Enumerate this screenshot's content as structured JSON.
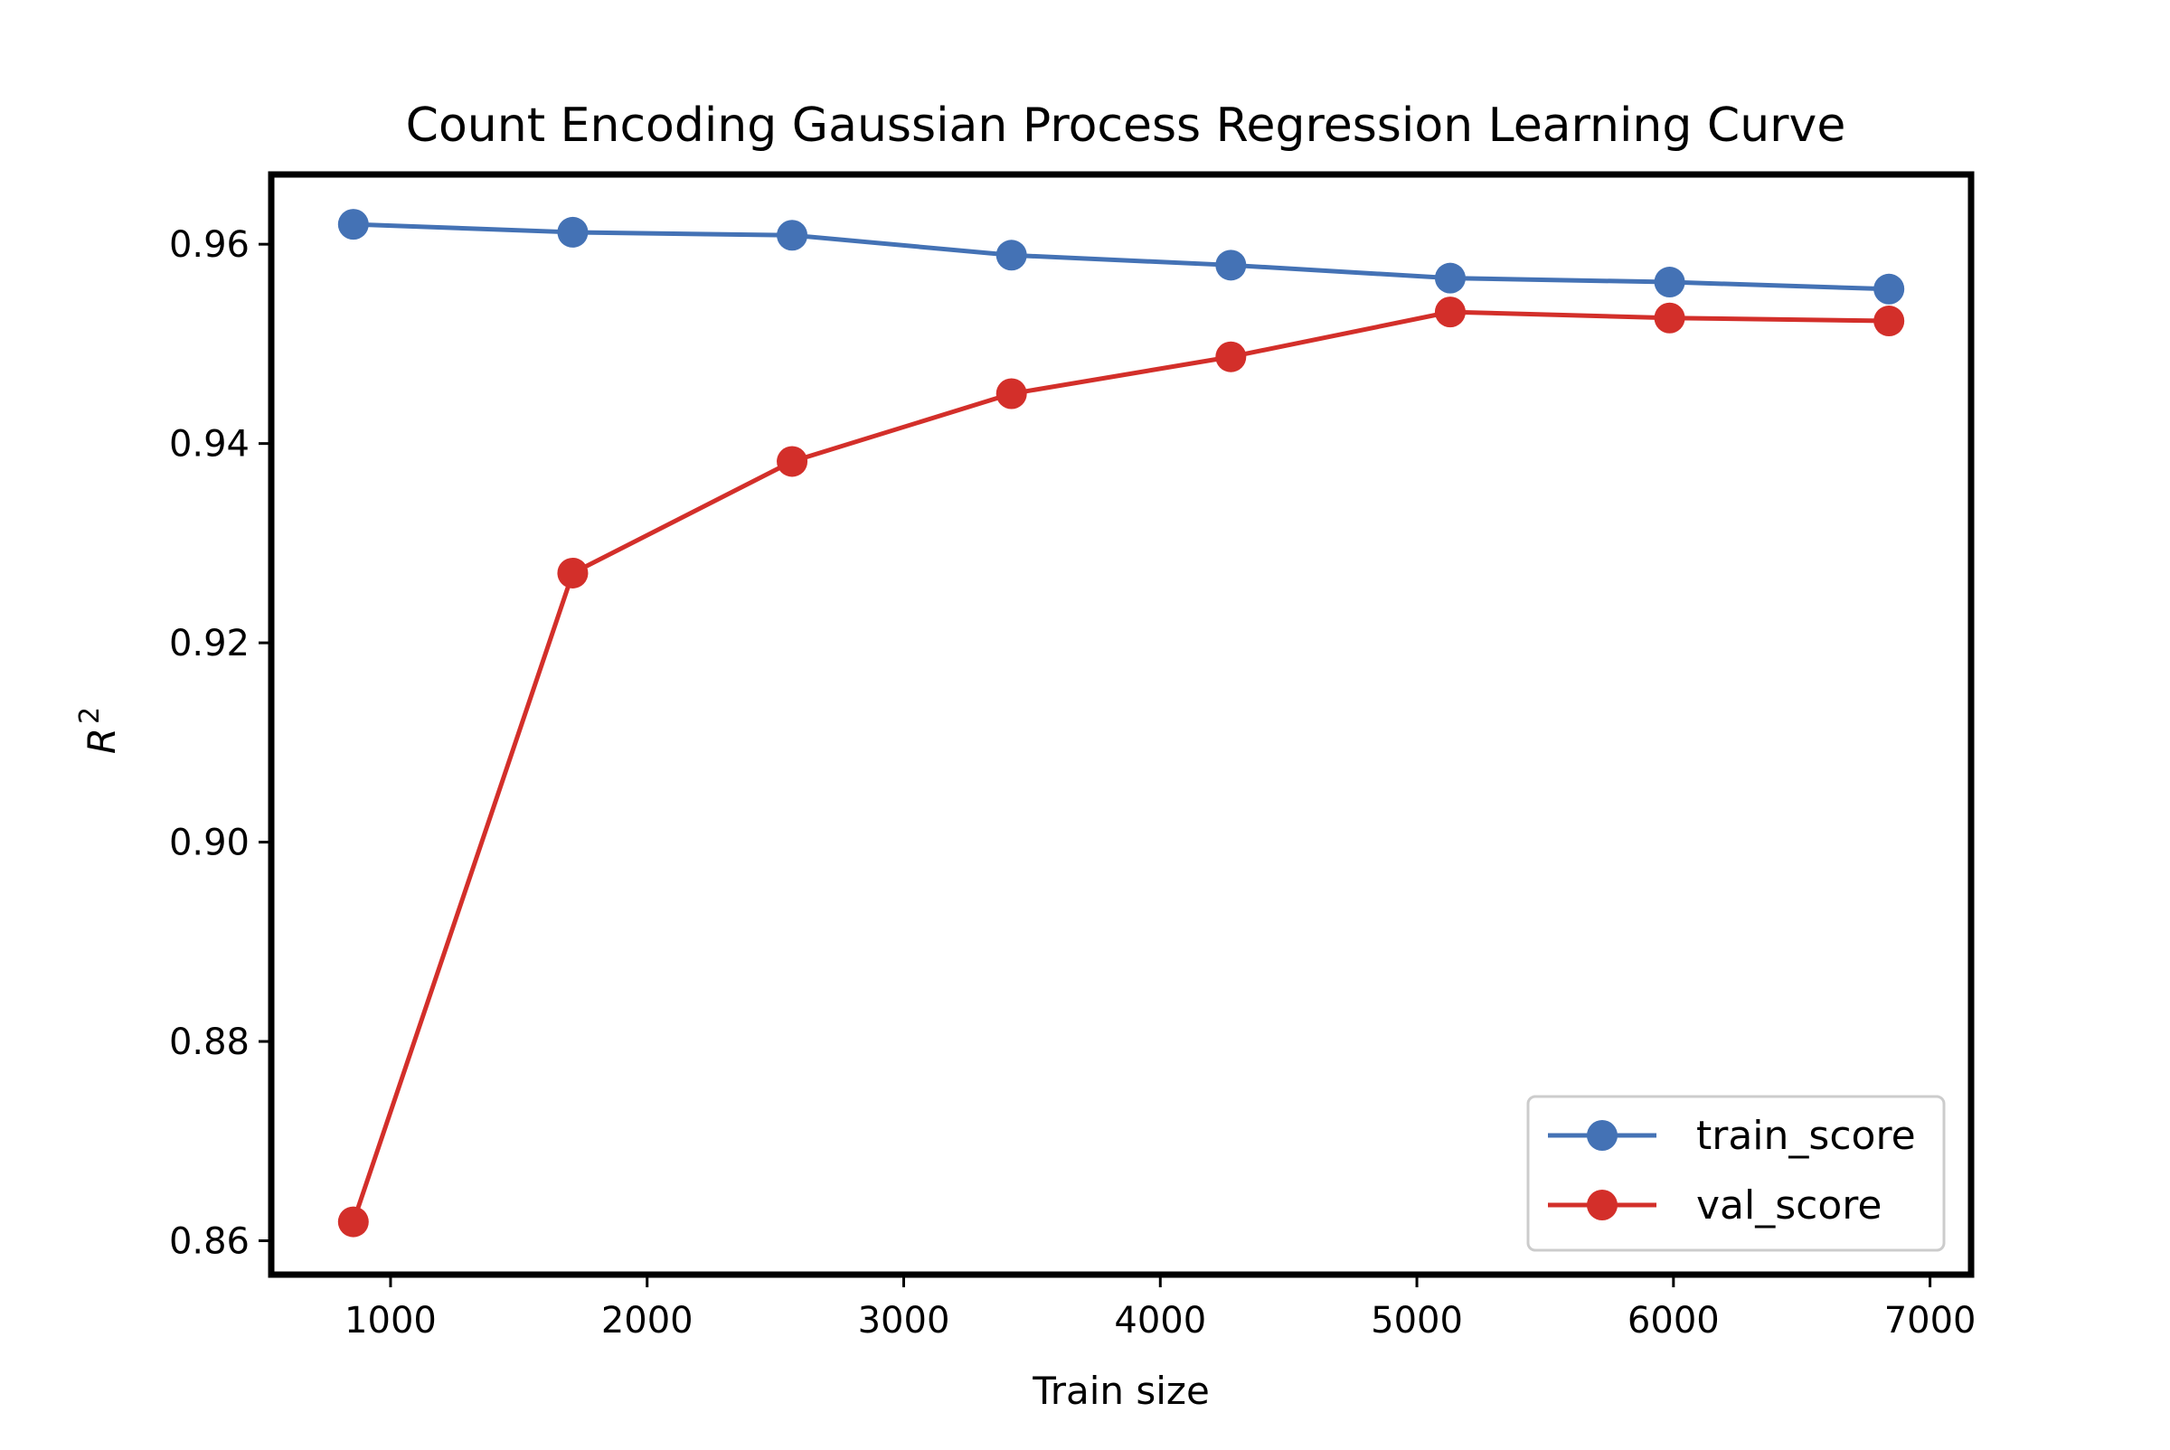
{
  "chart_data": {
    "type": "line",
    "title": "Count Encoding Gaussian Process Regression Learning Curve",
    "xlabel": "Train size",
    "ylabel": "R",
    "ylabel_superscript": "2",
    "x": [
      855,
      1710,
      2565,
      3420,
      4275,
      5130,
      5985,
      6840
    ],
    "xlim": [
      535,
      7160
    ],
    "ylim": [
      0.8566,
      0.967
    ],
    "xticks": [
      1000,
      2000,
      3000,
      4000,
      5000,
      6000,
      7000
    ],
    "xtick_labels": [
      "1000",
      "2000",
      "3000",
      "4000",
      "5000",
      "6000",
      "7000"
    ],
    "yticks": [
      0.86,
      0.88,
      0.9,
      0.92,
      0.94,
      0.96
    ],
    "ytick_labels": [
      "0.86",
      "0.88",
      "0.90",
      "0.92",
      "0.94",
      "0.96"
    ],
    "grid": false,
    "legend_position": "bottom-right",
    "series": [
      {
        "name": "train_score",
        "color": "#4472b5",
        "values": [
          0.962,
          0.9612,
          0.9609,
          0.9589,
          0.9579,
          0.9566,
          0.9562,
          0.9555
        ]
      },
      {
        "name": "val_score",
        "color": "#d32f2a",
        "values": [
          0.8619,
          0.927,
          0.9382,
          0.945,
          0.9487,
          0.9532,
          0.9526,
          0.9523
        ]
      }
    ]
  }
}
